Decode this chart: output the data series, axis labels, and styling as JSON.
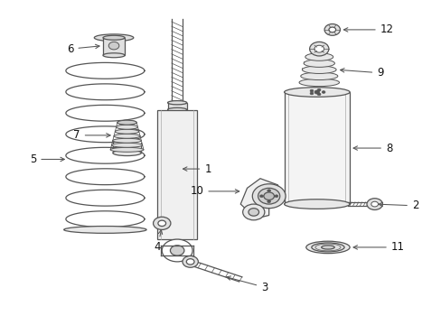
{
  "background_color": "#ffffff",
  "line_color": "#555555",
  "fig_width": 4.89,
  "fig_height": 3.6,
  "dpi": 100,
  "labels": {
    "1": [
      0.465,
      0.48,
      0.415,
      0.48
    ],
    "2": [
      0.945,
      0.365,
      0.875,
      0.365
    ],
    "3": [
      0.595,
      0.115,
      0.525,
      0.125
    ],
    "4": [
      0.405,
      0.285,
      0.38,
      0.305
    ],
    "5": [
      0.105,
      0.47,
      0.175,
      0.47
    ],
    "6": [
      0.195,
      0.825,
      0.245,
      0.82
    ],
    "7": [
      0.21,
      0.6,
      0.265,
      0.6
    ],
    "8": [
      0.89,
      0.535,
      0.79,
      0.535
    ],
    "9": [
      0.895,
      0.73,
      0.795,
      0.745
    ],
    "10": [
      0.515,
      0.37,
      0.565,
      0.375
    ],
    "11": [
      0.875,
      0.215,
      0.775,
      0.215
    ],
    "12": [
      0.89,
      0.9,
      0.79,
      0.895
    ]
  }
}
